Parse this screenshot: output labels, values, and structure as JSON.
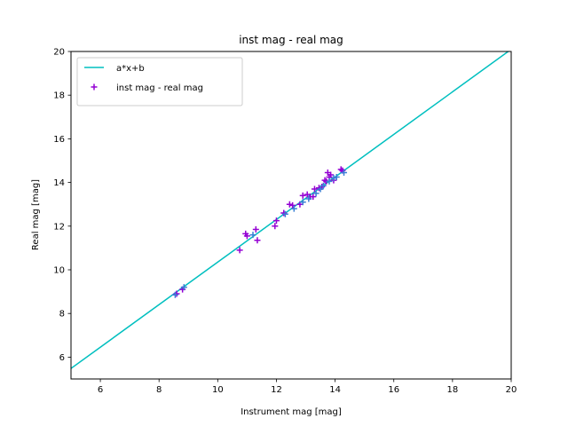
{
  "chart_data": {
    "type": "scatter",
    "title": "inst mag - real mag",
    "xlabel": "Instrument mag [mag]",
    "ylabel": "Real mag [mag]",
    "xlim": [
      5,
      20
    ],
    "ylim": [
      5,
      20
    ],
    "xticks": [
      6,
      8,
      10,
      12,
      14,
      16,
      18,
      20
    ],
    "yticks": [
      6,
      8,
      10,
      12,
      14,
      16,
      18,
      20
    ],
    "grid": false,
    "legend_position": "top-left",
    "series": [
      {
        "name": "a*x+b",
        "kind": "line",
        "color": "#00bfbf",
        "x": [
          5,
          20
        ],
        "y": [
          5.48,
          20.1
        ]
      },
      {
        "name": "inst mag - real mag",
        "kind": "scatter",
        "marker": "plus",
        "color": "#9400d3",
        "x": [
          8.6,
          8.8,
          10.75,
          10.95,
          11.0,
          11.3,
          11.35,
          11.95,
          12.0,
          12.25,
          12.45,
          12.55,
          12.8,
          12.9,
          13.05,
          13.15,
          13.25,
          13.3,
          13.45,
          13.55,
          13.65,
          13.7,
          13.75,
          13.8,
          13.85,
          13.95,
          14.2,
          14.25
        ],
        "y": [
          8.9,
          9.1,
          10.9,
          11.65,
          11.55,
          11.85,
          11.35,
          12.0,
          12.25,
          12.6,
          13.0,
          12.95,
          13.0,
          13.4,
          13.45,
          13.35,
          13.35,
          13.7,
          13.75,
          13.8,
          14.1,
          14.05,
          14.45,
          14.25,
          14.35,
          14.1,
          14.6,
          14.55
        ]
      },
      {
        "name": "",
        "kind": "scatter",
        "marker": "plus",
        "color": "#3a7fd5",
        "x": [
          8.55,
          8.85,
          11.2,
          12.3,
          12.6,
          12.9,
          13.1,
          13.35,
          13.5,
          13.6,
          13.8,
          13.95,
          14.05,
          14.3
        ],
        "y": [
          8.85,
          9.2,
          11.6,
          12.55,
          12.8,
          13.1,
          13.25,
          13.5,
          13.7,
          13.85,
          14.05,
          14.2,
          14.25,
          14.45
        ]
      }
    ]
  }
}
